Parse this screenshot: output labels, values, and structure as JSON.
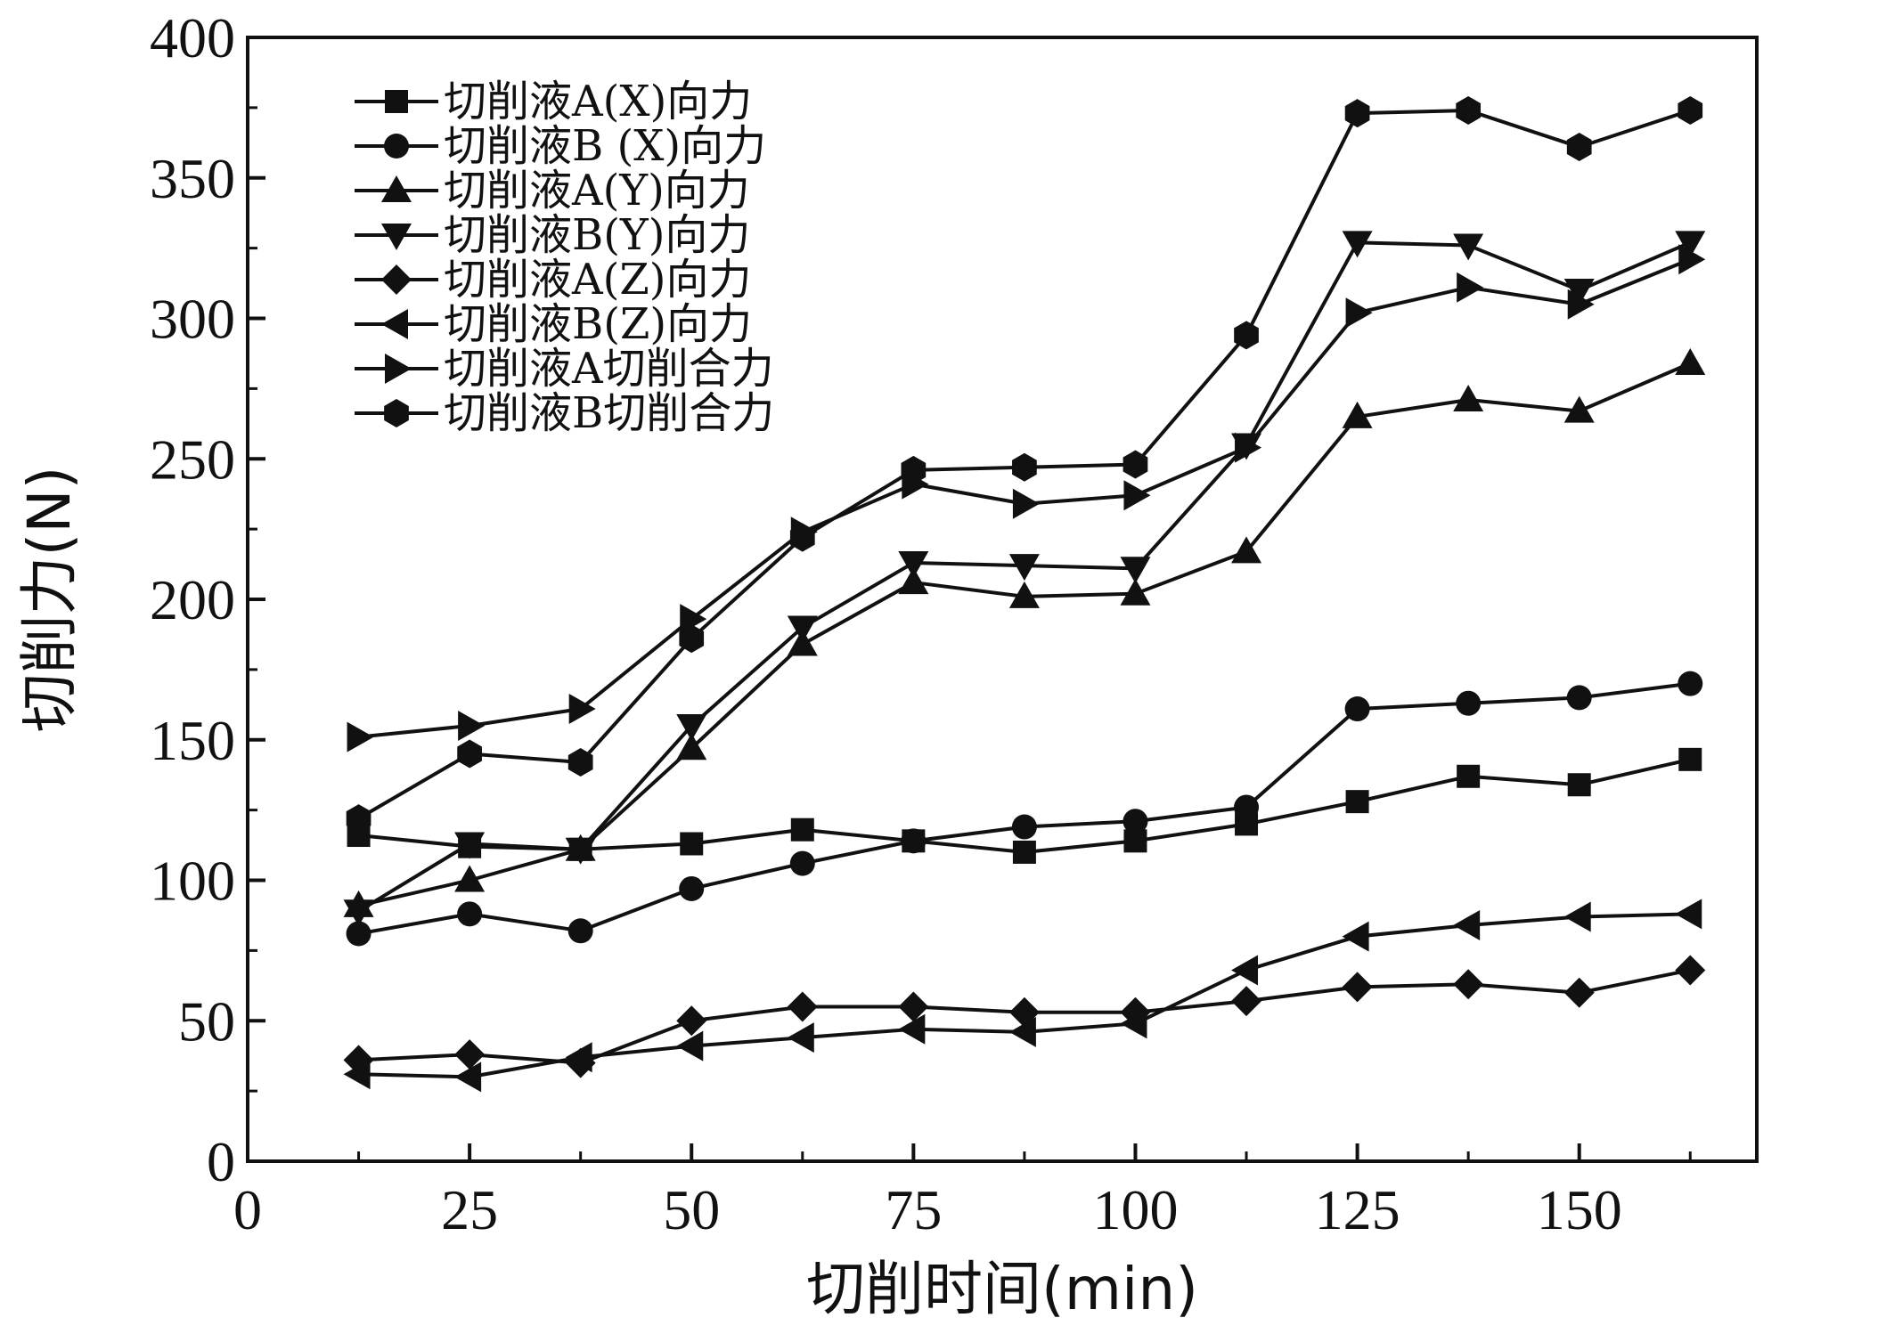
{
  "chart_data": {
    "type": "line",
    "xlabel": "切削时间(min)",
    "ylabel": "切削力(N)",
    "xlim": [
      0,
      170
    ],
    "ylim": [
      0,
      400
    ],
    "xticks": [
      0,
      25,
      50,
      75,
      100,
      125,
      150
    ],
    "yticks": [
      0,
      50,
      100,
      150,
      200,
      250,
      300,
      350,
      400
    ],
    "grid": false,
    "legend_position": "top-left",
    "x": [
      12.5,
      25,
      37.5,
      50,
      62.5,
      75,
      87.5,
      100,
      112.5,
      125,
      137.5,
      150,
      162.5
    ],
    "series": [
      {
        "name": "切削液A(X)向力",
        "marker": "square",
        "values": [
          116,
          112,
          111,
          113,
          118,
          114,
          110,
          114,
          120,
          128,
          137,
          134,
          143
        ]
      },
      {
        "name": "切削液B (X)向力",
        "marker": "circle",
        "values": [
          81,
          88,
          82,
          97,
          106,
          114,
          119,
          121,
          126,
          161,
          163,
          165,
          170
        ]
      },
      {
        "name": "切削液A(Y)向力",
        "marker": "triangle-up",
        "values": [
          91,
          100,
          111,
          147,
          184,
          206,
          201,
          202,
          217,
          265,
          271,
          267,
          284
        ]
      },
      {
        "name": "切削液B(Y)向力",
        "marker": "triangle-down",
        "values": [
          89,
          113,
          111,
          155,
          190,
          213,
          212,
          211,
          255,
          327,
          326,
          310,
          327
        ]
      },
      {
        "name": "切削液A(Z)向力",
        "marker": "diamond",
        "values": [
          36,
          38,
          35,
          50,
          55,
          55,
          53,
          53,
          57,
          62,
          63,
          60,
          68
        ]
      },
      {
        "name": "切削液B(Z)向力",
        "marker": "triangle-left",
        "values": [
          31,
          30,
          37,
          41,
          44,
          47,
          46,
          49,
          68,
          80,
          84,
          87,
          88
        ]
      },
      {
        "name": "切削液A切削合力",
        "marker": "triangle-right",
        "values": [
          151,
          155,
          161,
          193,
          224,
          241,
          234,
          237,
          254,
          302,
          311,
          305,
          321
        ]
      },
      {
        "name": "切削液B切削合力",
        "marker": "hexagon",
        "values": [
          122,
          145,
          142,
          186,
          222,
          246,
          247,
          248,
          294,
          373,
          374,
          361,
          374
        ]
      }
    ]
  }
}
